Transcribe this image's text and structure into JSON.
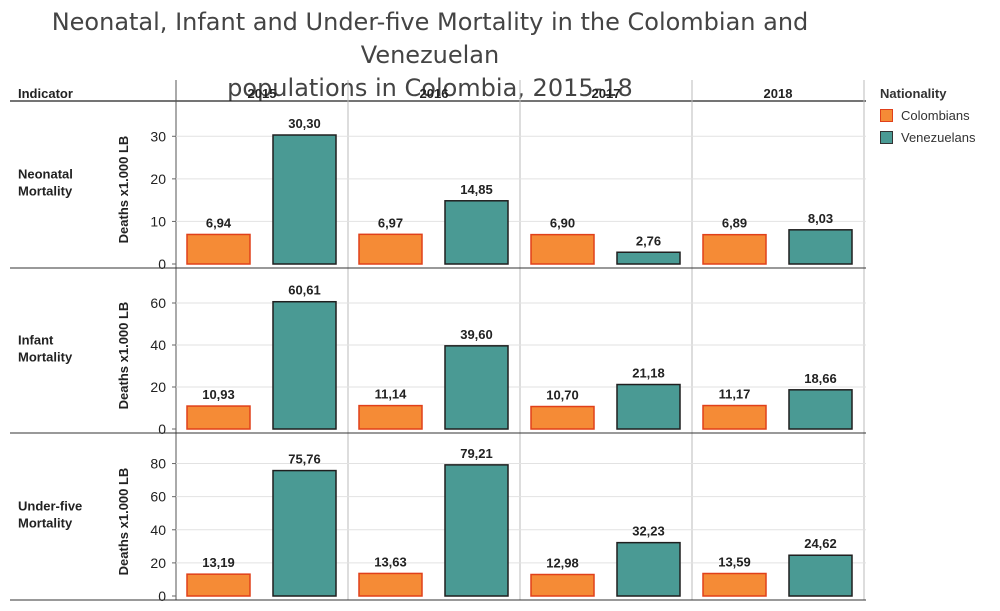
{
  "title": "Neonatal, Infant and Under-five Mortality in the Colombian and Venezuelan populations in Colombia, 2015-18",
  "title_line1": "Neonatal, Infant and Under-five Mortality in the Colombian and Venezuelan",
  "title_line2": "populations in Colombia, 2015-18",
  "colors": {
    "colombians": "#F58B36",
    "colombians_border": "#E0401A",
    "venezuelans": "#4A9A94",
    "venezuelans_border": "#1F1F1F"
  },
  "legend": {
    "title": "Nationality",
    "items": [
      {
        "label": "Colombians",
        "color": "#F58B36"
      },
      {
        "label": "Venezuelans",
        "color": "#4A9A94"
      }
    ]
  },
  "chart_data": {
    "type": "bar",
    "title": "Neonatal, Infant and Under-five Mortality in the Colombian and Venezuelan populations in Colombia, 2015-18",
    "row_header": "Indicator",
    "ylabel": "Deaths x1.000 LB",
    "years": [
      "2015",
      "2016",
      "2017",
      "2018"
    ],
    "series_names": [
      "Colombians",
      "Venezuelans"
    ],
    "panels": [
      {
        "indicator": "Neonatal Mortality",
        "label_lines": [
          "Neonatal",
          "Mortality"
        ],
        "ylim": [
          0,
          35
        ],
        "ticks": [
          0,
          10,
          20,
          30
        ],
        "colombians": [
          6.94,
          6.97,
          6.9,
          6.89
        ],
        "venezuelans": [
          30.3,
          14.85,
          2.76,
          8.03
        ],
        "colombians_labels": [
          "6,94",
          "6,97",
          "6,90",
          "6,89"
        ],
        "venezuelans_labels": [
          "30,30",
          "14,85",
          "2,76",
          "8,03"
        ]
      },
      {
        "indicator": "Infant Mortality",
        "label_lines": [
          "Infant",
          "Mortality"
        ],
        "ylim": [
          0,
          70
        ],
        "ticks": [
          0,
          20,
          40,
          60
        ],
        "colombians": [
          10.93,
          11.14,
          10.7,
          11.17
        ],
        "venezuelans": [
          60.61,
          39.6,
          21.18,
          18.66
        ],
        "colombians_labels": [
          "10,93",
          "11,14",
          "10,70",
          "11,17"
        ],
        "venezuelans_labels": [
          "60,61",
          "39,60",
          "21,18",
          "18,66"
        ]
      },
      {
        "indicator": "Under-five Mortality",
        "label_lines": [
          "Under-five",
          "Mortality"
        ],
        "ylim": [
          0,
          90
        ],
        "ticks": [
          0,
          20,
          40,
          60,
          80
        ],
        "colombians": [
          13.19,
          13.63,
          12.98,
          13.59
        ],
        "venezuelans": [
          75.76,
          79.21,
          32.23,
          24.62
        ],
        "colombians_labels": [
          "13,19",
          "13,63",
          "12,98",
          "13,59"
        ],
        "venezuelans_labels": [
          "75,76",
          "79,21",
          "32,23",
          "24,62"
        ]
      }
    ]
  }
}
